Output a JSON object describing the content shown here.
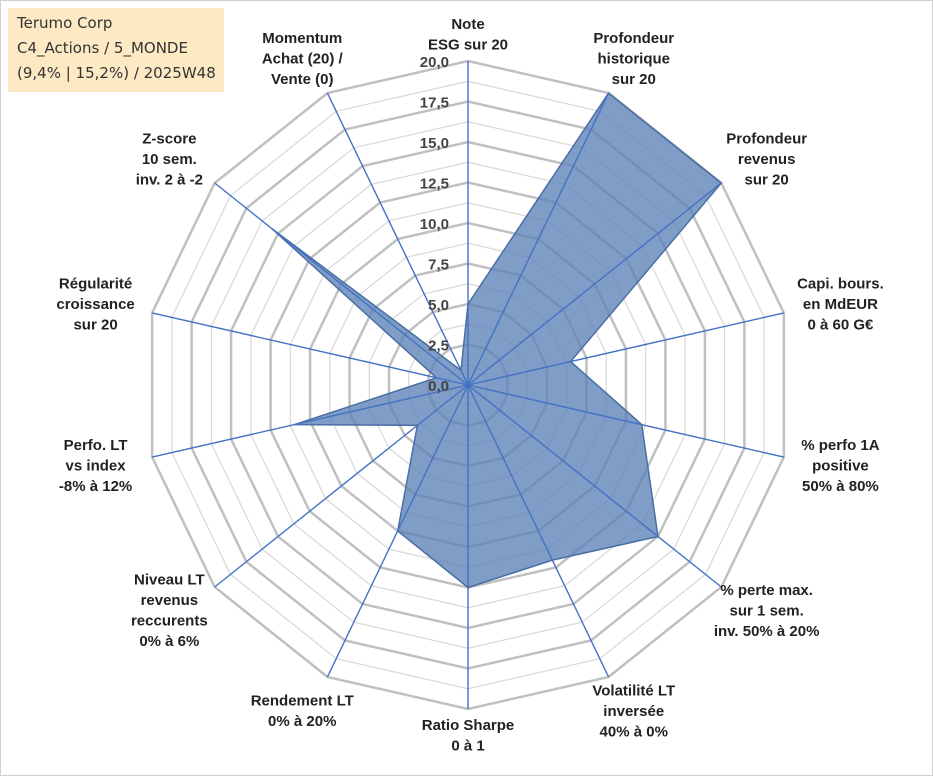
{
  "info": {
    "line1": "Terumo Corp",
    "line2": "C4_Actions / 5_MONDE",
    "line3": "(9,4% | 15,2%) / 2025W48"
  },
  "chart_data": {
    "type": "radar",
    "rmin": 0,
    "rmax": 20,
    "ticks": [
      "0,0",
      "2,5",
      "5,0",
      "7,5",
      "10,0",
      "12,5",
      "15,0",
      "17,5",
      "20,0"
    ],
    "axes": [
      {
        "label": [
          "Note",
          "ESG sur 20"
        ],
        "value": 5.0
      },
      {
        "label": [
          "Profondeur",
          "historique",
          "sur 20"
        ],
        "value": 20.0
      },
      {
        "label": [
          "Profondeur",
          "revenus",
          "sur 20"
        ],
        "value": 20.0
      },
      {
        "label": [
          "Capi. bours.",
          "en MdEUR",
          "0 à 60 G€"
        ],
        "value": 6.5
      },
      {
        "label": [
          "% perfo 1A",
          "positive",
          "50% à 80%"
        ],
        "value": 11.0
      },
      {
        "label": [
          "% perte max.",
          "sur 1 sem.",
          "inv. 50% à 20%"
        ],
        "value": 15.0
      },
      {
        "label": [
          "Volatilité LT",
          "inversée",
          "40% à 0%"
        ],
        "value": 12.0
      },
      {
        "label": [
          "Ratio Sharpe",
          "0 à 1"
        ],
        "value": 12.5
      },
      {
        "label": [
          "Rendement LT",
          "0% à 20%"
        ],
        "value": 10.0
      },
      {
        "label": [
          "Niveau LT",
          "revenus",
          "reccurents",
          "0% à 6%"
        ],
        "value": 4.0
      },
      {
        "label": [
          "Perfo. LT",
          "vs index",
          "-8% à 12%"
        ],
        "value": 11.0
      },
      {
        "label": [
          "Régularité",
          "croissance",
          "sur 20"
        ],
        "value": 2.0
      },
      {
        "label": [
          "Z-score",
          "10 sem.",
          "inv. 2 à -2"
        ],
        "value": 15.5
      },
      {
        "label": [
          "Momentum",
          "Achat (20) /",
          "Vente (0)"
        ],
        "value": 1.0
      }
    ],
    "grid": true,
    "fill_color": "#5b82b6",
    "axis_color": "#4472c4",
    "grid_color": "#c0c0c0"
  }
}
